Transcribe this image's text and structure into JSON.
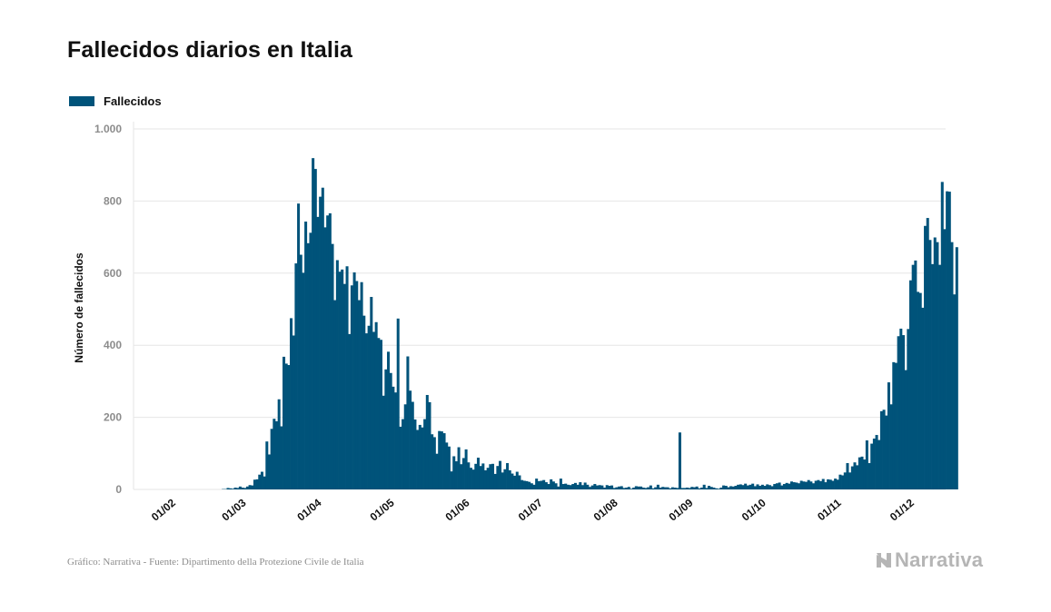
{
  "header": {
    "title": "Fallecidos diarios en Italia"
  },
  "footer": {
    "source": "Gráfico: Narrativa - Fuente: Dipartimento della Protezione Civile de Italia",
    "brand": "Narrativa"
  },
  "colors": {
    "bar": "#00537a",
    "grid": "#e6e6e6",
    "axis_text": "#8c8c8c",
    "brand": "#b5b5b5"
  },
  "chart_data": {
    "type": "bar",
    "title": "Fallecidos diarios en Italia",
    "ylabel": "Número de fallecidos",
    "xlabel": "",
    "legend": {
      "position": "top-left",
      "entries": [
        "Fallecidos"
      ]
    },
    "series": [
      {
        "name": "Fallecidos",
        "start_date": "2020-02-01",
        "values": [
          0,
          0,
          0,
          0,
          0,
          0,
          0,
          0,
          0,
          0,
          0,
          0,
          0,
          0,
          0,
          0,
          0,
          0,
          0,
          0,
          0,
          1,
          1,
          4,
          3,
          2,
          5,
          4,
          8,
          5,
          4,
          8,
          12,
          11,
          27,
          28,
          41,
          49,
          36,
          133,
          97,
          168,
          196,
          189,
          250,
          175,
          368,
          349,
          345,
          475,
          427,
          627,
          793,
          651,
          601,
          743,
          683,
          712,
          919,
          889,
          756,
          812,
          837,
          727,
          760,
          766,
          681,
          525,
          636,
          604,
          610,
          570,
          619,
          431,
          566,
          602,
          578,
          525,
          575,
          482,
          433,
          454,
          534,
          437,
          464,
          420,
          415,
          260,
          333,
          382,
          323,
          285,
          269,
          474,
          174,
          195,
          236,
          369,
          274,
          243,
          194,
          165,
          179,
          172,
          195,
          262,
          242,
          153,
          145,
          99,
          162,
          161,
          156,
          130,
          119,
          50,
          92,
          78,
          117,
          70,
          87,
          111,
          75,
          60,
          55,
          71,
          88,
          65,
          72,
          53,
          60,
          70,
          71,
          43,
          65,
          79,
          47,
          56,
          73,
          53,
          44,
          38,
          49,
          39,
          26,
          24,
          23,
          21,
          17,
          13,
          30,
          23,
          24,
          26,
          20,
          15,
          28,
          22,
          17,
          8,
          30,
          15,
          16,
          13,
          12,
          15,
          18,
          13,
          20,
          12,
          19,
          13,
          7,
          11,
          15,
          11,
          12,
          11,
          5,
          12,
          10,
          11,
          4,
          6,
          8,
          9,
          4,
          5,
          7,
          2,
          5,
          9,
          8,
          8,
          5,
          4,
          6,
          11,
          3,
          6,
          13,
          5,
          7,
          6,
          6,
          3,
          6,
          5,
          4,
          158,
          4,
          4,
          5,
          4,
          7,
          6,
          8,
          3,
          5,
          13,
          4,
          10,
          7,
          5,
          3,
          2,
          5,
          11,
          10,
          6,
          9,
          8,
          10,
          13,
          14,
          12,
          16,
          11,
          13,
          16,
          9,
          14,
          10,
          13,
          10,
          14,
          12,
          9,
          15,
          17,
          19,
          11,
          15,
          18,
          16,
          22,
          20,
          19,
          17,
          24,
          22,
          21,
          26,
          22,
          17,
          24,
          26,
          23,
          29,
          20,
          28,
          27,
          24,
          30,
          27,
          41,
          39,
          47,
          73,
          47,
          64,
          75,
          67,
          89,
          91,
          83,
          136,
          73,
          127,
          141,
          151,
          137,
          217,
          221,
          205,
          297,
          236,
          353,
          351,
          425,
          446,
          428,
          331,
          445,
          580,
          623,
          635,
          548,
          545,
          504,
          731,
          753,
          692,
          625,
          699,
          686,
          623,
          853,
          722,
          827,
          826,
          686,
          541,
          672
        ]
      }
    ],
    "x_ticks": [
      "01/02",
      "01/03",
      "01/04",
      "01/05",
      "01/06",
      "01/07",
      "01/08",
      "01/09",
      "01/10",
      "01/11",
      "01/12"
    ],
    "x_tick_dates": [
      "2020-02-01",
      "2020-03-01",
      "2020-04-01",
      "2020-05-01",
      "2020-06-01",
      "2020-07-01",
      "2020-08-01",
      "2020-09-01",
      "2020-10-01",
      "2020-11-01",
      "2020-12-01"
    ],
    "y_ticks": [
      0,
      200,
      400,
      600,
      800,
      1000
    ],
    "y_tick_labels": [
      "0",
      "200",
      "400",
      "600",
      "800",
      "1.000"
    ],
    "ylim": [
      0,
      1000
    ],
    "grid": true
  }
}
